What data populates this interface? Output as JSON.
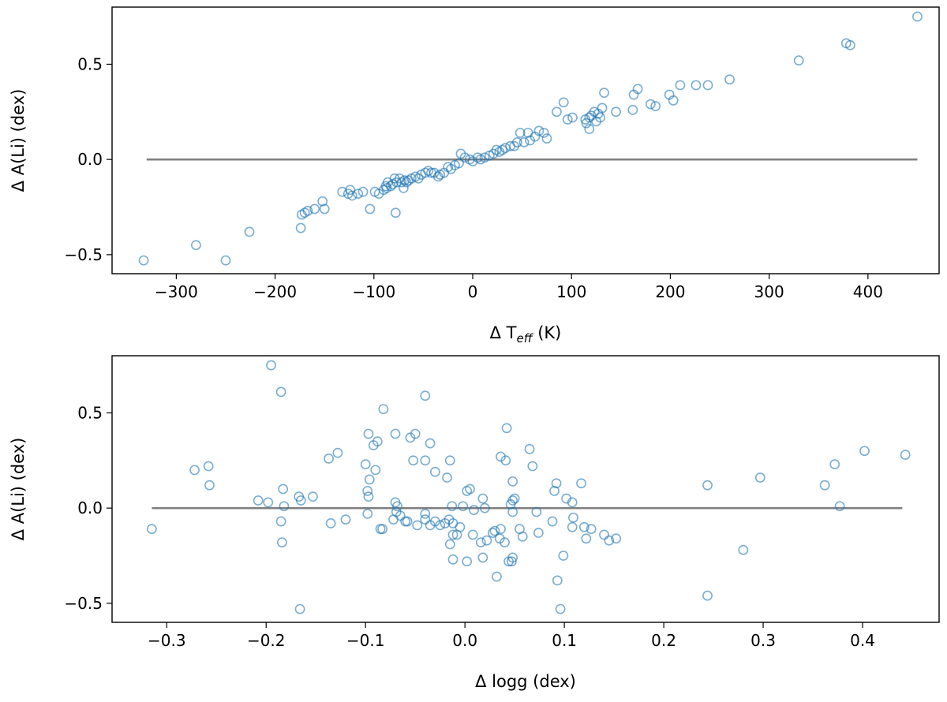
{
  "chart_data": [
    {
      "type": "scatter",
      "xlabel_prefix": "Δ T",
      "xlabel_sub": "eff",
      "xlabel_suffix": " (K)",
      "ylabel": "Δ A(Li) (dex)",
      "xlim": [
        -365,
        472
      ],
      "ylim": [
        -0.6,
        0.8
      ],
      "xticks": [
        -300,
        -200,
        -100,
        0,
        100,
        200,
        300,
        400
      ],
      "xtick_labels": [
        "−300",
        "−200",
        "−100",
        "0",
        "100",
        "200",
        "300",
        "400"
      ],
      "yticks": [
        -0.5,
        0.0,
        0.5
      ],
      "ytick_labels": [
        "−0.5",
        "0.0",
        "0.5"
      ],
      "grid": false,
      "marker_color": "#1f77b4",
      "reference_line": {
        "y": 0.0,
        "x_range": [
          -330,
          450
        ],
        "color": "#808080"
      },
      "points": [
        [
          450,
          0.75
        ],
        [
          378,
          0.61
        ],
        [
          382,
          0.6
        ],
        [
          330,
          0.52
        ],
        [
          260,
          0.42
        ],
        [
          238,
          0.39
        ],
        [
          226,
          0.39
        ],
        [
          210,
          0.39
        ],
        [
          203,
          0.31
        ],
        [
          199,
          0.34
        ],
        [
          185,
          0.28
        ],
        [
          180,
          0.29
        ],
        [
          167,
          0.37
        ],
        [
          163,
          0.34
        ],
        [
          162,
          0.26
        ],
        [
          145,
          0.25
        ],
        [
          133,
          0.35
        ],
        [
          131,
          0.27
        ],
        [
          129,
          0.22
        ],
        [
          127,
          0.24
        ],
        [
          125,
          0.2
        ],
        [
          123,
          0.25
        ],
        [
          120,
          0.23
        ],
        [
          118,
          0.16
        ],
        [
          118,
          0.22
        ],
        [
          115,
          0.19
        ],
        [
          114,
          0.21
        ],
        [
          101,
          0.22
        ],
        [
          96,
          0.21
        ],
        [
          92,
          0.3
        ],
        [
          85,
          0.25
        ],
        [
          75,
          0.11
        ],
        [
          72,
          0.14
        ],
        [
          67,
          0.15
        ],
        [
          63,
          0.12
        ],
        [
          58,
          0.1
        ],
        [
          56,
          0.14
        ],
        [
          52,
          0.09
        ],
        [
          48,
          0.14
        ],
        [
          45,
          0.09
        ],
        [
          42,
          0.07
        ],
        [
          38,
          0.07
        ],
        [
          33,
          0.06
        ],
        [
          30,
          0.05
        ],
        [
          27,
          0.04
        ],
        [
          24,
          0.05
        ],
        [
          21,
          0.03
        ],
        [
          17,
          0.02
        ],
        [
          12,
          0.01
        ],
        [
          8,
          0.0
        ],
        [
          5,
          0.01
        ],
        [
          0,
          -0.01
        ],
        [
          -3,
          0.0
        ],
        [
          -8,
          0.01
        ],
        [
          -12,
          0.03
        ],
        [
          -14,
          -0.02
        ],
        [
          -18,
          -0.03
        ],
        [
          -22,
          -0.05
        ],
        [
          -25,
          -0.04
        ],
        [
          -29,
          -0.07
        ],
        [
          -33,
          -0.08
        ],
        [
          -35,
          -0.09
        ],
        [
          -39,
          -0.07
        ],
        [
          -42,
          -0.07
        ],
        [
          -45,
          -0.06
        ],
        [
          -48,
          -0.07
        ],
        [
          -52,
          -0.08
        ],
        [
          -55,
          -0.1
        ],
        [
          -58,
          -0.09
        ],
        [
          -62,
          -0.1
        ],
        [
          -65,
          -0.11
        ],
        [
          -67,
          -0.12
        ],
        [
          -69,
          -0.11
        ],
        [
          -70,
          -0.15
        ],
        [
          -72,
          -0.12
        ],
        [
          -74,
          -0.1
        ],
        [
          -77,
          -0.12
        ],
        [
          -79,
          -0.1
        ],
        [
          -81,
          -0.13
        ],
        [
          -83,
          -0.14
        ],
        [
          -86,
          -0.12
        ],
        [
          -87,
          -0.15
        ],
        [
          -88,
          -0.14
        ],
        [
          -90,
          -0.16
        ],
        [
          -95,
          -0.18
        ],
        [
          -99,
          -0.17
        ],
        [
          -104,
          -0.26
        ],
        [
          -111,
          -0.17
        ],
        [
          -116,
          -0.18
        ],
        [
          -122,
          -0.19
        ],
        [
          -124,
          -0.16
        ],
        [
          -126,
          -0.18
        ],
        [
          -132,
          -0.17
        ],
        [
          -78,
          -0.28
        ],
        [
          -150,
          -0.26
        ],
        [
          -152,
          -0.22
        ],
        [
          -160,
          -0.26
        ],
        [
          -167,
          -0.27
        ],
        [
          -170,
          -0.28
        ],
        [
          -173,
          -0.29
        ],
        [
          -174,
          -0.36
        ],
        [
          -226,
          -0.38
        ],
        [
          -250,
          -0.53
        ],
        [
          -280,
          -0.45
        ],
        [
          -333,
          -0.53
        ]
      ]
    },
    {
      "type": "scatter",
      "xlabel": "Δ logg (dex)",
      "ylabel": "Δ A(Li) (dex)",
      "xlim": [
        -0.355,
        0.477
      ],
      "ylim": [
        -0.6,
        0.8
      ],
      "xticks": [
        -0.3,
        -0.2,
        -0.1,
        0.0,
        0.1,
        0.2,
        0.3,
        0.4
      ],
      "xtick_labels": [
        "−0.3",
        "−0.2",
        "−0.1",
        "0.0",
        "0.1",
        "0.2",
        "0.3",
        "0.4"
      ],
      "yticks": [
        -0.5,
        0.0,
        0.5
      ],
      "ytick_labels": [
        "−0.5",
        "0.0",
        "0.5"
      ],
      "grid": false,
      "marker_color": "#1f77b4",
      "reference_line": {
        "y": 0.0,
        "x_range": [
          -0.315,
          0.44
        ],
        "color": "#808080"
      },
      "points": [
        [
          -0.195,
          0.75
        ],
        [
          -0.185,
          0.61
        ],
        [
          -0.04,
          0.59
        ],
        [
          -0.082,
          0.52
        ],
        [
          0.042,
          0.42
        ],
        [
          -0.097,
          0.39
        ],
        [
          -0.07,
          0.39
        ],
        [
          -0.05,
          0.39
        ],
        [
          -0.055,
          0.37
        ],
        [
          -0.035,
          0.34
        ],
        [
          -0.088,
          0.35
        ],
        [
          -0.092,
          0.33
        ],
        [
          -0.128,
          0.29
        ],
        [
          0.065,
          0.31
        ],
        [
          0.402,
          0.3
        ],
        [
          0.443,
          0.28
        ],
        [
          -0.137,
          0.26
        ],
        [
          -0.052,
          0.25
        ],
        [
          -0.04,
          0.25
        ],
        [
          -0.015,
          0.25
        ],
        [
          0.036,
          0.27
        ],
        [
          0.041,
          0.25
        ],
        [
          0.372,
          0.23
        ],
        [
          -0.1,
          0.23
        ],
        [
          -0.272,
          0.2
        ],
        [
          -0.258,
          0.22
        ],
        [
          -0.03,
          0.19
        ],
        [
          -0.018,
          0.16
        ],
        [
          0.068,
          0.22
        ],
        [
          -0.09,
          0.2
        ],
        [
          -0.096,
          0.15
        ],
        [
          -0.257,
          0.12
        ],
        [
          0.002,
          0.09
        ],
        [
          0.005,
          0.1
        ],
        [
          0.048,
          0.14
        ],
        [
          0.092,
          0.13
        ],
        [
          0.117,
          0.13
        ],
        [
          0.244,
          0.12
        ],
        [
          0.297,
          0.16
        ],
        [
          0.362,
          0.12
        ],
        [
          -0.098,
          0.09
        ],
        [
          -0.097,
          0.06
        ],
        [
          -0.183,
          0.1
        ],
        [
          -0.167,
          0.06
        ],
        [
          -0.165,
          0.04
        ],
        [
          -0.153,
          0.06
        ],
        [
          -0.208,
          0.04
        ],
        [
          -0.198,
          0.03
        ],
        [
          0.09,
          0.09
        ],
        [
          0.102,
          0.05
        ],
        [
          0.108,
          0.03
        ],
        [
          0.048,
          0.04
        ],
        [
          0.05,
          0.05
        ],
        [
          0.046,
          0.02
        ],
        [
          0.018,
          0.05
        ],
        [
          -0.07,
          0.03
        ],
        [
          -0.068,
          0.01
        ],
        [
          -0.013,
          0.01
        ],
        [
          -0.002,
          0.01
        ],
        [
          -0.182,
          0.01
        ],
        [
          0.377,
          0.01
        ],
        [
          -0.098,
          -0.03
        ],
        [
          -0.069,
          -0.02
        ],
        [
          -0.04,
          -0.03
        ],
        [
          0.02,
          0.0
        ],
        [
          0.009,
          -0.01
        ],
        [
          0.048,
          -0.02
        ],
        [
          0.072,
          -0.02
        ],
        [
          -0.315,
          -0.11
        ],
        [
          -0.185,
          -0.07
        ],
        [
          -0.184,
          -0.18
        ],
        [
          -0.135,
          -0.08
        ],
        [
          -0.12,
          -0.06
        ],
        [
          -0.085,
          -0.11
        ],
        [
          -0.083,
          -0.11
        ],
        [
          -0.072,
          -0.06
        ],
        [
          -0.065,
          -0.04
        ],
        [
          -0.06,
          -0.07
        ],
        [
          -0.058,
          -0.07
        ],
        [
          -0.048,
          -0.09
        ],
        [
          -0.04,
          -0.06
        ],
        [
          -0.035,
          -0.09
        ],
        [
          -0.03,
          -0.07
        ],
        [
          -0.025,
          -0.09
        ],
        [
          -0.02,
          -0.08
        ],
        [
          -0.016,
          -0.06
        ],
        [
          -0.012,
          -0.08
        ],
        [
          -0.005,
          -0.1
        ],
        [
          -0.012,
          -0.14
        ],
        [
          -0.015,
          -0.19
        ],
        [
          -0.008,
          -0.14
        ],
        [
          -0.012,
          -0.27
        ],
        [
          0.002,
          -0.28
        ],
        [
          0.008,
          -0.14
        ],
        [
          0.016,
          -0.18
        ],
        [
          0.018,
          -0.26
        ],
        [
          0.022,
          -0.17
        ],
        [
          0.028,
          -0.13
        ],
        [
          0.03,
          -0.12
        ],
        [
          0.035,
          -0.16
        ],
        [
          0.032,
          -0.36
        ],
        [
          0.036,
          -0.11
        ],
        [
          0.04,
          -0.18
        ],
        [
          0.044,
          -0.28
        ],
        [
          0.047,
          -0.28
        ],
        [
          0.048,
          -0.26
        ],
        [
          0.055,
          -0.11
        ],
        [
          0.058,
          -0.15
        ],
        [
          0.074,
          -0.13
        ],
        [
          0.088,
          -0.07
        ],
        [
          0.096,
          -0.53
        ],
        [
          0.099,
          -0.25
        ],
        [
          0.093,
          -0.38
        ],
        [
          0.108,
          -0.1
        ],
        [
          0.109,
          -0.05
        ],
        [
          0.12,
          -0.1
        ],
        [
          0.122,
          -0.16
        ],
        [
          0.127,
          -0.11
        ],
        [
          0.14,
          -0.14
        ],
        [
          0.145,
          -0.17
        ],
        [
          0.152,
          -0.16
        ],
        [
          0.244,
          -0.46
        ],
        [
          0.28,
          -0.22
        ],
        [
          -0.166,
          -0.53
        ]
      ]
    }
  ]
}
